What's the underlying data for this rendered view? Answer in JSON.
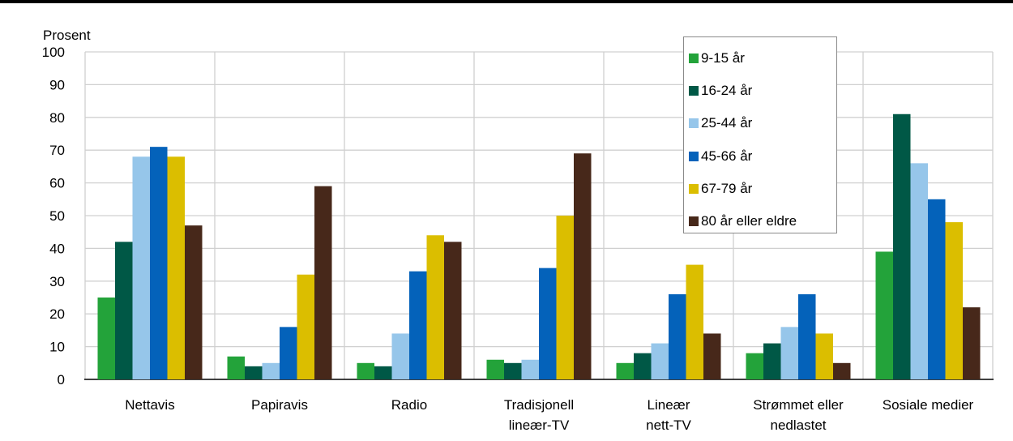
{
  "chart_data": {
    "type": "bar",
    "ylabel": "Prosent",
    "ylim": [
      0,
      100
    ],
    "yticks": [
      0,
      10,
      20,
      30,
      40,
      50,
      60,
      70,
      80,
      90,
      100
    ],
    "grid": true,
    "legend_position": "top-right",
    "categories": [
      [
        "Nettavis"
      ],
      [
        "Papiravis"
      ],
      [
        "Radio"
      ],
      [
        "Tradisjonell",
        "lineær-TV"
      ],
      [
        "Lineær",
        "nett-TV"
      ],
      [
        "Strømmet eller",
        "nedlastet"
      ],
      [
        "Sosiale medier"
      ]
    ],
    "series": [
      {
        "name": "9-15 år",
        "color": "#23a33a",
        "values": [
          25,
          7,
          5,
          6,
          5,
          8,
          39
        ]
      },
      {
        "name": "16-24 år",
        "color": "#005846",
        "values": [
          42,
          4,
          4,
          5,
          8,
          11,
          81
        ]
      },
      {
        "name": "25-44 år",
        "color": "#96c6ea",
        "values": [
          68,
          5,
          14,
          6,
          11,
          16,
          66
        ]
      },
      {
        "name": "45-66 år",
        "color": "#0462ba",
        "values": [
          71,
          16,
          33,
          34,
          26,
          26,
          55
        ]
      },
      {
        "name": "67-79 år",
        "color": "#dbbe00",
        "values": [
          68,
          32,
          44,
          50,
          35,
          14,
          48
        ]
      },
      {
        "name": "80 år eller eldre",
        "color": "#47281a",
        "values": [
          47,
          59,
          42,
          69,
          14,
          5,
          22
        ]
      }
    ]
  }
}
